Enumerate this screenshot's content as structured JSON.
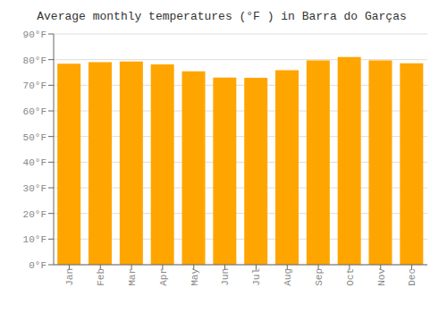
{
  "chart_data": {
    "type": "bar",
    "title": "Average monthly temperatures (°F ) in Barra do Garças",
    "categories": [
      "Jan",
      "Feb",
      "Mar",
      "Apr",
      "May",
      "Jun",
      "Jul",
      "Aug",
      "Sep",
      "Oct",
      "Nov",
      "Dec"
    ],
    "values": [
      78.4,
      79.0,
      79.3,
      78.1,
      75.4,
      73.0,
      72.9,
      75.9,
      79.7,
      81.0,
      79.7,
      78.6
    ],
    "color": "#FFA500",
    "ylim": [
      0,
      90
    ],
    "yticks": [
      {
        "value": 0,
        "label": "0°F"
      },
      {
        "value": 10,
        "label": "10°F"
      },
      {
        "value": 20,
        "label": "20°F"
      },
      {
        "value": 30,
        "label": "30°F"
      },
      {
        "value": 40,
        "label": "40°F"
      },
      {
        "value": 50,
        "label": "50°F"
      },
      {
        "value": 60,
        "label": "60°F"
      },
      {
        "value": 70,
        "label": "70°F"
      },
      {
        "value": 80,
        "label": "80°F"
      },
      {
        "value": 90,
        "label": "90°F"
      }
    ],
    "grid": true
  }
}
